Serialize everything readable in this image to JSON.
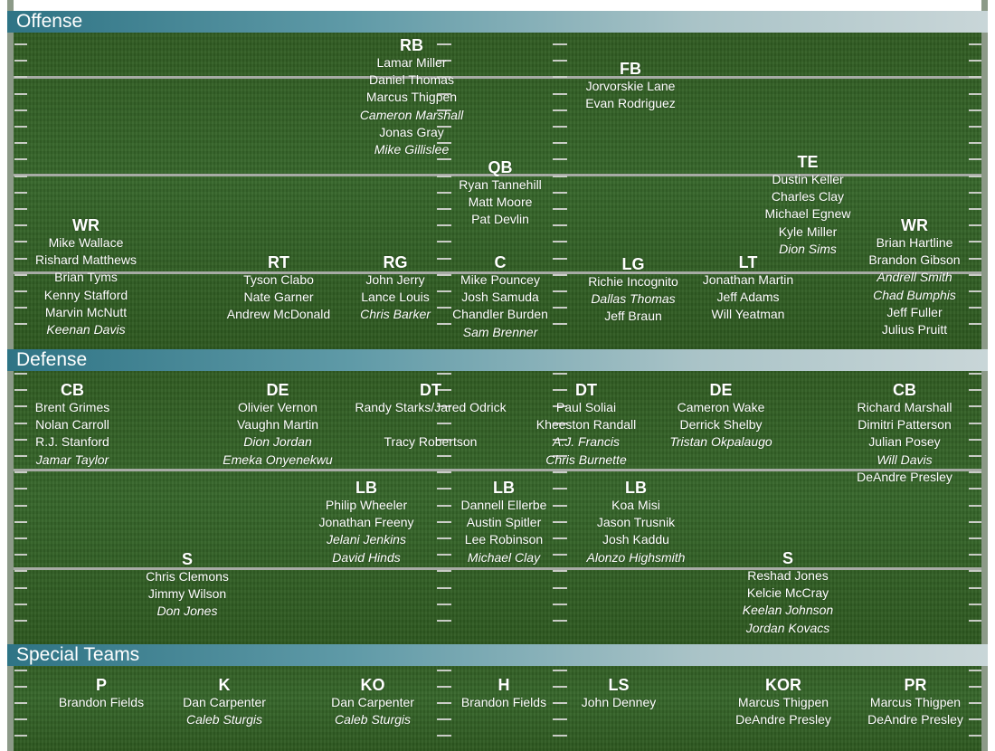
{
  "sections": {
    "offense": "Offense",
    "defense": "Defense",
    "special_teams": "Special Teams"
  },
  "positions": [
    {
      "title": "RB",
      "players": [
        {
          "name": "Lamar Miller"
        },
        {
          "name": "Daniel Thomas"
        },
        {
          "name": "Marcus Thigpen"
        },
        {
          "name": "Cameron Marshall",
          "italic": true
        },
        {
          "name": "Jonas Gray"
        },
        {
          "name": "Mike Gillislee",
          "italic": true
        }
      ]
    },
    {
      "title": "FB",
      "players": [
        {
          "name": "Jorvorskie Lane"
        },
        {
          "name": "Evan Rodriguez"
        }
      ]
    },
    {
      "title": "QB",
      "players": [
        {
          "name": "Ryan Tannehill"
        },
        {
          "name": "Matt Moore"
        },
        {
          "name": "Pat Devlin"
        }
      ]
    },
    {
      "title": "TE",
      "players": [
        {
          "name": "Dustin Keller"
        },
        {
          "name": "Charles Clay"
        },
        {
          "name": "Michael Egnew"
        },
        {
          "name": "Kyle Miller"
        },
        {
          "name": "Dion Sims",
          "italic": true
        }
      ]
    },
    {
      "title": "WR",
      "players": [
        {
          "name": "Mike Wallace"
        },
        {
          "name": "Rishard Matthews"
        },
        {
          "name": "Brian Tyms"
        },
        {
          "name": "Kenny Stafford"
        },
        {
          "name": "Marvin McNutt"
        },
        {
          "name": "Keenan Davis",
          "italic": true
        }
      ]
    },
    {
      "title": "WR",
      "players": [
        {
          "name": "Brian Hartline"
        },
        {
          "name": "Brandon Gibson"
        },
        {
          "name": "Andrell Smith",
          "italic": true
        },
        {
          "name": "Chad Bumphis",
          "italic": true
        },
        {
          "name": "Jeff Fuller"
        },
        {
          "name": "Julius Pruitt"
        }
      ]
    },
    {
      "title": "RT",
      "players": [
        {
          "name": "Tyson Clabo"
        },
        {
          "name": "Nate Garner"
        },
        {
          "name": "Andrew McDonald"
        }
      ]
    },
    {
      "title": "RG",
      "players": [
        {
          "name": "John Jerry"
        },
        {
          "name": "Lance Louis"
        },
        {
          "name": "Chris Barker",
          "italic": true
        }
      ]
    },
    {
      "title": "C",
      "players": [
        {
          "name": "Mike Pouncey"
        },
        {
          "name": "Josh Samuda"
        },
        {
          "name": "Chandler Burden"
        },
        {
          "name": "Sam Brenner",
          "italic": true
        }
      ]
    },
    {
      "title": "LG",
      "players": [
        {
          "name": "Richie Incognito"
        },
        {
          "name": "Dallas Thomas",
          "italic": true
        },
        {
          "name": "Jeff Braun"
        }
      ]
    },
    {
      "title": "LT",
      "players": [
        {
          "name": "Jonathan Martin"
        },
        {
          "name": "Jeff Adams"
        },
        {
          "name": "Will Yeatman"
        }
      ]
    },
    {
      "title": "CB",
      "players": [
        {
          "name": "Brent Grimes"
        },
        {
          "name": "Nolan Carroll"
        },
        {
          "name": "R.J. Stanford"
        },
        {
          "name": "Jamar Taylor",
          "italic": true
        }
      ]
    },
    {
      "title": "DE",
      "players": [
        {
          "name": "Olivier Vernon"
        },
        {
          "name": "Vaughn Martin"
        },
        {
          "name": "Dion Jordan",
          "italic": true
        },
        {
          "name": "Emeka Onyenekwu",
          "italic": true
        }
      ]
    },
    {
      "title": "DT",
      "players": [
        {
          "name": "Randy Starks/Jared Odrick"
        },
        {
          "name": ""
        },
        {
          "name": "Tracy Robertson"
        }
      ]
    },
    {
      "title": "DT",
      "players": [
        {
          "name": "Paul Soliai"
        },
        {
          "name": "Kheeston Randall"
        },
        {
          "name": "A.J. Francis",
          "italic": true
        },
        {
          "name": "Chris Burnette",
          "italic": true
        }
      ]
    },
    {
      "title": "DE",
      "players": [
        {
          "name": "Cameron Wake"
        },
        {
          "name": "Derrick Shelby"
        },
        {
          "name": "Tristan Okpalaugo",
          "italic": true
        }
      ]
    },
    {
      "title": "CB",
      "players": [
        {
          "name": "Richard Marshall"
        },
        {
          "name": "Dimitri Patterson"
        },
        {
          "name": "Julian Posey"
        },
        {
          "name": "Will Davis",
          "italic": true
        },
        {
          "name": "DeAndre Presley"
        }
      ]
    },
    {
      "title": "LB",
      "players": [
        {
          "name": "Philip Wheeler"
        },
        {
          "name": "Jonathan Freeny"
        },
        {
          "name": "Jelani Jenkins",
          "italic": true
        },
        {
          "name": "David Hinds",
          "italic": true
        }
      ]
    },
    {
      "title": "LB",
      "players": [
        {
          "name": "Dannell Ellerbe"
        },
        {
          "name": "Austin Spitler"
        },
        {
          "name": "Lee Robinson"
        },
        {
          "name": "Michael Clay",
          "italic": true
        }
      ]
    },
    {
      "title": "LB",
      "players": [
        {
          "name": "Koa Misi"
        },
        {
          "name": "Jason Trusnik"
        },
        {
          "name": "Josh Kaddu"
        },
        {
          "name": "Alonzo Highsmith",
          "italic": true
        }
      ]
    },
    {
      "title": "S",
      "players": [
        {
          "name": "Chris Clemons"
        },
        {
          "name": "Jimmy Wilson"
        },
        {
          "name": "Don Jones",
          "italic": true
        }
      ]
    },
    {
      "title": "S",
      "players": [
        {
          "name": "Reshad Jones"
        },
        {
          "name": "Kelcie McCray"
        },
        {
          "name": "Keelan Johnson",
          "italic": true
        },
        {
          "name": "Jordan Kovacs",
          "italic": true
        }
      ]
    },
    {
      "title": "P",
      "players": [
        {
          "name": "Brandon Fields"
        }
      ]
    },
    {
      "title": "K",
      "players": [
        {
          "name": "Dan Carpenter"
        },
        {
          "name": "Caleb Sturgis",
          "italic": true
        }
      ]
    },
    {
      "title": "KO",
      "players": [
        {
          "name": "Dan Carpenter"
        },
        {
          "name": "Caleb Sturgis",
          "italic": true
        }
      ]
    },
    {
      "title": "H",
      "players": [
        {
          "name": "Brandon Fields"
        }
      ]
    },
    {
      "title": "LS",
      "players": [
        {
          "name": "John Denney"
        }
      ]
    },
    {
      "title": "KOR",
      "players": [
        {
          "name": "Marcus Thigpen"
        },
        {
          "name": "DeAndre Presley"
        }
      ]
    },
    {
      "title": "PR",
      "players": [
        {
          "name": "Marcus Thigpen"
        },
        {
          "name": "DeAndre Presley"
        }
      ]
    }
  ]
}
